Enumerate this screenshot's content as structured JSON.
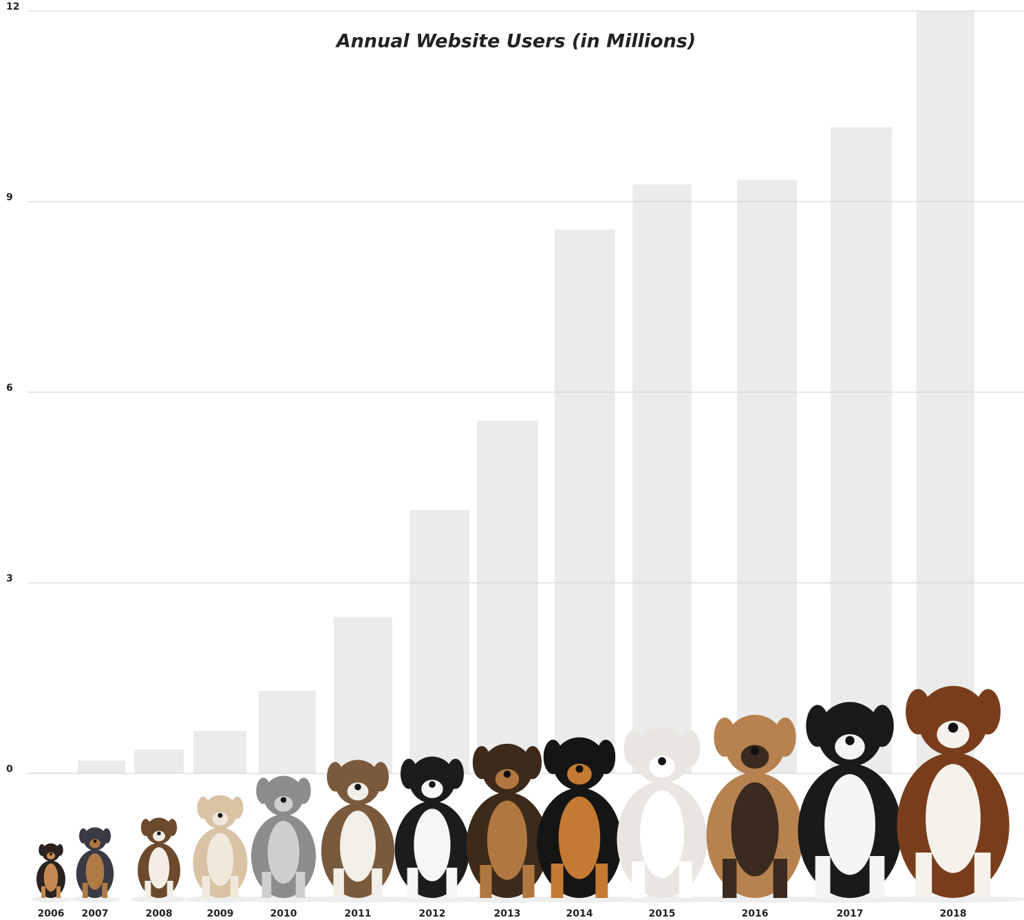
{
  "chart_data": {
    "type": "bar",
    "title": "Annual Website Users (in Millions)",
    "categories": [
      "2006",
      "2007",
      "2008",
      "2009",
      "2010",
      "2011",
      "2012",
      "2013",
      "2014",
      "2015",
      "2016",
      "2017",
      "2018"
    ],
    "values": [
      0.02,
      0.2,
      0.38,
      0.67,
      1.3,
      2.46,
      4.15,
      5.55,
      8.56,
      9.27,
      9.34,
      10.17,
      12.0
    ],
    "color": "#ebebeb",
    "ylim": [
      0,
      12
    ],
    "yticks": [
      0,
      3,
      6,
      9,
      12
    ],
    "grid": true
  }
}
